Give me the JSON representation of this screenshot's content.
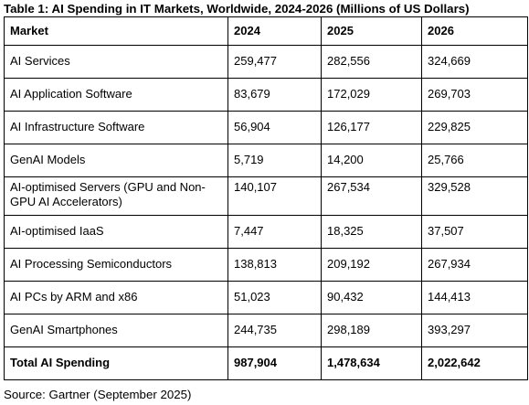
{
  "title": "Table 1: AI Spending in IT Markets, Worldwide, 2024-2026 (Millions of US Dollars)",
  "headers": [
    "Market",
    "2024",
    "2025",
    "2026"
  ],
  "rows": [
    [
      "AI Services",
      "259,477",
      "282,556",
      "324,669"
    ],
    [
      "AI Application Software",
      "83,679",
      "172,029",
      "269,703"
    ],
    [
      "AI Infrastructure Software",
      "56,904",
      "126,177",
      "229,825"
    ],
    [
      "GenAI Models",
      "5,719",
      "14,200",
      "25,766"
    ],
    [
      "AI-optimised Servers (GPU and Non-GPU AI Accelerators)",
      "140,107",
      "267,534",
      "329,528"
    ],
    [
      "AI-optimised IaaS",
      "7,447",
      "18,325",
      "37,507"
    ],
    [
      "AI Processing Semiconductors",
      "138,813",
      "209,192",
      "267,934"
    ],
    [
      "AI PCs by ARM and x86",
      "51,023",
      "90,432",
      "144,413"
    ],
    [
      "GenAI Smartphones",
      "244,735",
      "298,189",
      "393,297"
    ]
  ],
  "total": [
    "Total AI Spending",
    "987,904",
    "1,478,634",
    "2,022,642"
  ],
  "source": "Source: Gartner (September 2025)"
}
